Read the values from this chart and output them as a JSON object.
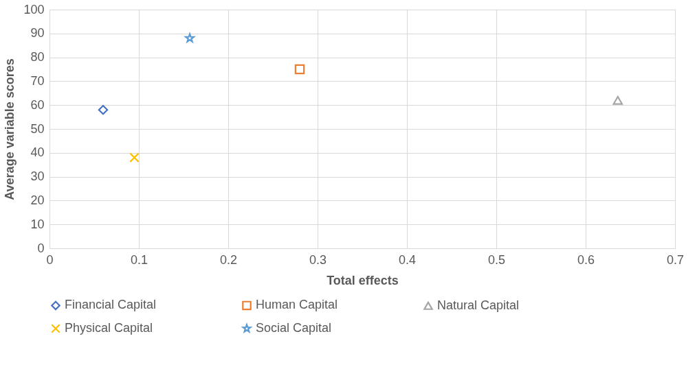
{
  "chart_data": {
    "type": "scatter",
    "xlabel": "Total effects",
    "ylabel": "Average variable scores",
    "xlim": [
      0,
      0.7
    ],
    "xticks": [
      0,
      0.1,
      0.2,
      0.3,
      0.4,
      0.5,
      0.6,
      0.7
    ],
    "ylim": [
      0,
      100
    ],
    "yticks": [
      0,
      10,
      20,
      30,
      40,
      50,
      60,
      70,
      80,
      90,
      100
    ],
    "grid": true,
    "legend": "bottom",
    "series": [
      {
        "name": "Financial Capital",
        "color": "#4472c4",
        "marker": "diamond",
        "x": [
          0.06
        ],
        "values": [
          58
        ]
      },
      {
        "name": "Human Capital",
        "color": "#ed7d31",
        "marker": "square",
        "x": [
          0.28
        ],
        "values": [
          75
        ]
      },
      {
        "name": "Natural Capital",
        "color": "#a5a5a5",
        "marker": "triangle",
        "x": [
          0.636
        ],
        "values": [
          62
        ]
      },
      {
        "name": "Physical Capital",
        "color": "#ffc000",
        "marker": "cross",
        "x": [
          0.095
        ],
        "values": [
          38
        ]
      },
      {
        "name": "Social Capital",
        "color": "#5b9bd5",
        "marker": "star",
        "x": [
          0.157
        ],
        "values": [
          88
        ]
      }
    ]
  }
}
